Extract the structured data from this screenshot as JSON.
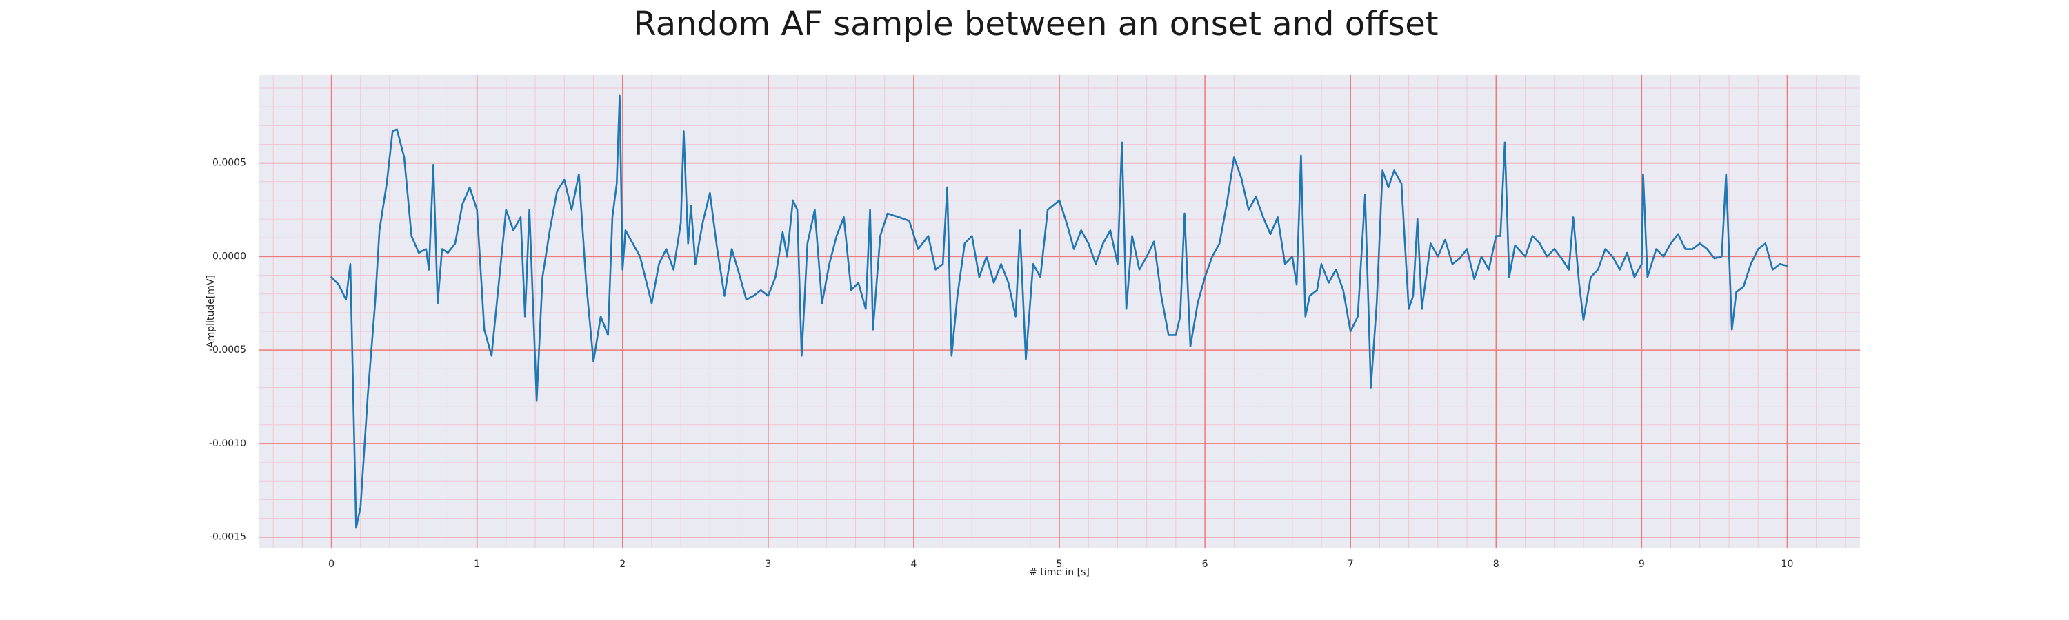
{
  "chart_data": {
    "type": "line",
    "title": "Random AF sample between an onset and offset",
    "xlabel": "# time in [s]",
    "ylabel": "Amplitude[mV]",
    "color": "#1f77b4",
    "grid": true,
    "minor_grid": true,
    "xlim": [
      -0.5,
      10.5
    ],
    "ylim": [
      -0.00156,
      0.00097
    ],
    "xticks": [
      0,
      1,
      2,
      3,
      4,
      5,
      6,
      7,
      8,
      9,
      10
    ],
    "yticks": [
      -0.0015,
      {
        "value": -0.001,
        "label": "-0.0010"
      },
      -0.0005,
      {
        "value": 0,
        "label": "0.0000"
      },
      0.0005
    ],
    "x": [
      0,
      0.05,
      0.1,
      0.13,
      0.17,
      0.2,
      0.25,
      0.3,
      0.33,
      0.38,
      0.42,
      0.45,
      0.5,
      0.55,
      0.6,
      0.65,
      0.67,
      0.7,
      0.73,
      0.76,
      0.8,
      0.85,
      0.9,
      0.95,
      1.0,
      1.05,
      1.1,
      1.15,
      1.2,
      1.25,
      1.3,
      1.33,
      1.36,
      1.41,
      1.45,
      1.5,
      1.55,
      1.6,
      1.65,
      1.7,
      1.75,
      1.8,
      1.85,
      1.9,
      1.93,
      1.96,
      1.98,
      2.0,
      2.02,
      2.07,
      2.12,
      2.2,
      2.25,
      2.3,
      2.35,
      2.4,
      2.42,
      2.45,
      2.47,
      2.5,
      2.55,
      2.6,
      2.65,
      2.7,
      2.75,
      2.8,
      2.85,
      2.9,
      2.95,
      3.0,
      3.05,
      3.1,
      3.13,
      3.17,
      3.2,
      3.23,
      3.27,
      3.32,
      3.37,
      3.42,
      3.47,
      3.52,
      3.57,
      3.62,
      3.67,
      3.7,
      3.72,
      3.77,
      3.82,
      3.9,
      3.97,
      4.03,
      4.1,
      4.15,
      4.2,
      4.23,
      4.26,
      4.3,
      4.35,
      4.4,
      4.45,
      4.5,
      4.55,
      4.6,
      4.65,
      4.7,
      4.73,
      4.77,
      4.82,
      4.87,
      4.92,
      5.0,
      5.05,
      5.1,
      5.15,
      5.2,
      5.25,
      5.3,
      5.35,
      5.4,
      5.43,
      5.46,
      5.5,
      5.55,
      5.6,
      5.65,
      5.7,
      5.75,
      5.8,
      5.83,
      5.86,
      5.9,
      5.95,
      6.0,
      6.05,
      6.1,
      6.15,
      6.2,
      6.25,
      6.3,
      6.35,
      6.4,
      6.45,
      6.5,
      6.55,
      6.6,
      6.63,
      6.66,
      6.69,
      6.72,
      6.77,
      6.8,
      6.85,
      6.9,
      6.95,
      7.0,
      7.05,
      7.1,
      7.14,
      7.18,
      7.22,
      7.26,
      7.3,
      7.35,
      7.4,
      7.43,
      7.46,
      7.49,
      7.55,
      7.6,
      7.65,
      7.7,
      7.75,
      7.8,
      7.85,
      7.9,
      7.95,
      8.0,
      8.03,
      8.06,
      8.09,
      8.13,
      8.2,
      8.25,
      8.3,
      8.35,
      8.4,
      8.45,
      8.5,
      8.53,
      8.57,
      8.6,
      8.65,
      8.7,
      8.75,
      8.8,
      8.85,
      8.9,
      8.95,
      9.0,
      9.01,
      9.04,
      9.1,
      9.15,
      9.2,
      9.25,
      9.3,
      9.35,
      9.4,
      9.45,
      9.5,
      9.55,
      9.58,
      9.62,
      9.65,
      9.7,
      9.75,
      9.8,
      9.85,
      9.9,
      9.95,
      10.0
    ],
    "values": [
      -0.00011,
      -0.00015,
      -0.00023,
      -4e-05,
      -0.00145,
      -0.00134,
      -0.00074,
      -0.00025,
      0.00014,
      0.00039,
      0.00067,
      0.00068,
      0.00053,
      0.00011,
      2e-05,
      4e-05,
      -7e-05,
      0.00049,
      -0.00025,
      4e-05,
      2e-05,
      7e-05,
      0.00028,
      0.00037,
      0.00025,
      -0.00039,
      -0.00053,
      -0.00014,
      0.00025,
      0.00014,
      0.00021,
      -0.00032,
      0.00025,
      -0.00077,
      -0.00011,
      0.00014,
      0.00035,
      0.00041,
      0.00025,
      0.00044,
      -0.00014,
      -0.00056,
      -0.00032,
      -0.00042,
      0.00021,
      0.00039,
      0.00086,
      -7e-05,
      0.00014,
      7e-05,
      0,
      -0.00025,
      -4e-05,
      4e-05,
      -7e-05,
      0.00018,
      0.00067,
      7e-05,
      0.00027,
      -4e-05,
      0.00018,
      0.00034,
      4e-05,
      -0.00021,
      4e-05,
      -9e-05,
      -0.00023,
      -0.00021,
      -0.00018,
      -0.00021,
      -0.00011,
      0.00013,
      0,
      0.0003,
      0.00025,
      -0.00053,
      7e-05,
      0.00025,
      -0.00025,
      -4e-05,
      0.00011,
      0.00021,
      -0.00018,
      -0.00014,
      -0.00028,
      0.00025,
      -0.00039,
      0.00011,
      0.00023,
      0.00021,
      0.00019,
      4e-05,
      0.00011,
      -7e-05,
      -4e-05,
      0.00037,
      -0.00053,
      -0.00021,
      7e-05,
      0.00011,
      -0.00011,
      0,
      -0.00014,
      -4e-05,
      -0.00014,
      -0.00032,
      0.00014,
      -0.00055,
      -4e-05,
      -0.00011,
      0.00025,
      0.0003,
      0.00018,
      4e-05,
      0.00014,
      7e-05,
      -4e-05,
      7e-05,
      0.00014,
      -4e-05,
      0.00061,
      -0.00028,
      0.00011,
      -7e-05,
      0,
      8e-05,
      -0.00021,
      -0.00042,
      -0.00042,
      -0.00032,
      0.00023,
      -0.00048,
      -0.00025,
      -0.00011,
      0,
      7e-05,
      0.00028,
      0.00053,
      0.00042,
      0.00025,
      0.00032,
      0.00021,
      0.00012,
      0.00021,
      -4e-05,
      0,
      -0.00015,
      0.00054,
      -0.00032,
      -0.00021,
      -0.00018,
      -4e-05,
      -0.00014,
      -7e-05,
      -0.00018,
      -0.0004,
      -0.00032,
      0.00033,
      -0.0007,
      -0.00025,
      0.00046,
      0.00037,
      0.00046,
      0.00039,
      -0.00028,
      -0.00021,
      0.0002,
      -0.00028,
      7e-05,
      0,
      9e-05,
      -4e-05,
      -1e-05,
      4e-05,
      -0.00012,
      0,
      -7e-05,
      0.00011,
      0.00011,
      0.00061,
      -0.00011,
      6e-05,
      0,
      0.00011,
      7e-05,
      0,
      4e-05,
      -1e-05,
      -7e-05,
      0.00021,
      -0.00014,
      -0.00034,
      -0.00011,
      -7e-05,
      4e-05,
      0,
      -7e-05,
      2e-05,
      -0.00011,
      -4e-05,
      0.00044,
      -0.00011,
      4e-05,
      0,
      7e-05,
      0.00012,
      4e-05,
      4e-05,
      7e-05,
      4e-05,
      -1e-05,
      0,
      0.00044,
      -0.00039,
      -0.00019,
      -0.00016,
      -4e-05,
      4e-05,
      7e-05,
      -7e-05,
      -4e-05,
      -5e-05
    ]
  }
}
